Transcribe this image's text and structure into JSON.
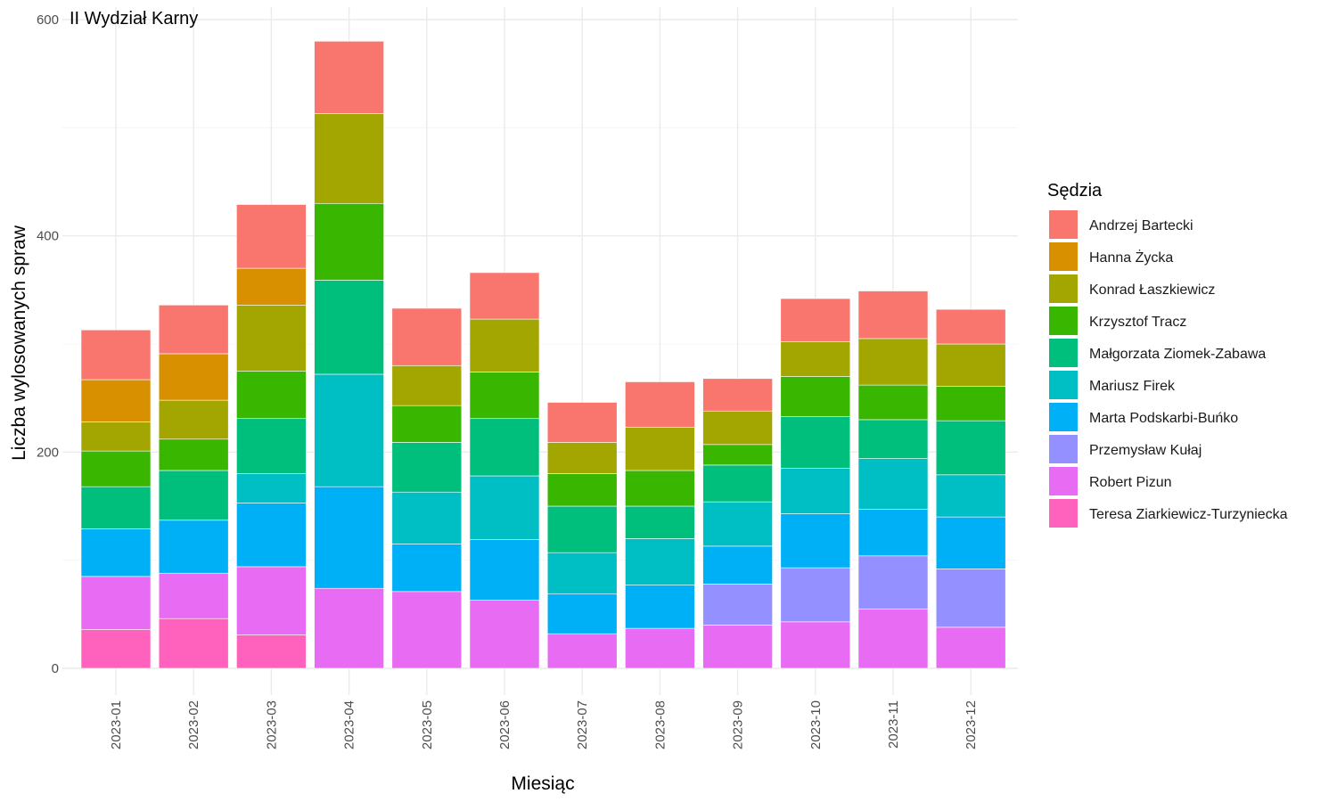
{
  "chart_data": {
    "type": "bar",
    "stacked": true,
    "title": "II Wydział Karny",
    "xlabel": "Miesiąc",
    "ylabel": "Liczba wylosowanych spraw",
    "ylim": [
      0,
      600
    ],
    "yticks": [
      0,
      200,
      400,
      600
    ],
    "grid": true,
    "legend_title": "Sędzia",
    "legend_position": "right",
    "categories": [
      "2023-01",
      "2023-02",
      "2023-03",
      "2023-04",
      "2023-05",
      "2023-06",
      "2023-07",
      "2023-08",
      "2023-09",
      "2023-10",
      "2023-11",
      "2023-12"
    ],
    "series": [
      {
        "name": "Andrzej Bartecki",
        "color": "#F8766D",
        "values": [
          46,
          45,
          59,
          67,
          53,
          43,
          37,
          42,
          30,
          40,
          44,
          32
        ]
      },
      {
        "name": "Hanna Życka",
        "color": "#D89000",
        "values": [
          39,
          43,
          34,
          0,
          0,
          0,
          0,
          0,
          0,
          0,
          0,
          0
        ]
      },
      {
        "name": "Konrad Łaszkiewicz",
        "color": "#A3A500",
        "values": [
          27,
          36,
          61,
          83,
          37,
          49,
          29,
          40,
          31,
          32,
          43,
          39
        ]
      },
      {
        "name": "Krzysztof Tracz",
        "color": "#39B600",
        "values": [
          33,
          29,
          44,
          71,
          34,
          43,
          30,
          33,
          19,
          37,
          32,
          32
        ]
      },
      {
        "name": "Małgorzata Ziomek-Zabawa",
        "color": "#00BF7D",
        "values": [
          39,
          46,
          51,
          87,
          46,
          53,
          43,
          30,
          34,
          48,
          36,
          50
        ]
      },
      {
        "name": "Mariusz Firek",
        "color": "#00BFC4",
        "values": [
          0,
          0,
          27,
          104,
          48,
          59,
          38,
          43,
          41,
          42,
          47,
          39
        ]
      },
      {
        "name": "Marta Podskarbi-Buńko",
        "color": "#00B0F6",
        "values": [
          44,
          49,
          59,
          94,
          44,
          56,
          37,
          40,
          35,
          50,
          43,
          48
        ]
      },
      {
        "name": "Przemysław Kułaj",
        "color": "#9590FF",
        "values": [
          0,
          0,
          0,
          0,
          0,
          0,
          0,
          0,
          38,
          50,
          49,
          54
        ]
      },
      {
        "name": "Robert Pizun",
        "color": "#E76BF3",
        "values": [
          49,
          42,
          63,
          74,
          71,
          63,
          32,
          37,
          40,
          43,
          55,
          38
        ]
      },
      {
        "name": "Teresa Ziarkiewicz-Turzyniecka",
        "color": "#FF62BC",
        "values": [
          36,
          46,
          31,
          0,
          0,
          0,
          0,
          0,
          0,
          0,
          0,
          0
        ]
      }
    ]
  }
}
